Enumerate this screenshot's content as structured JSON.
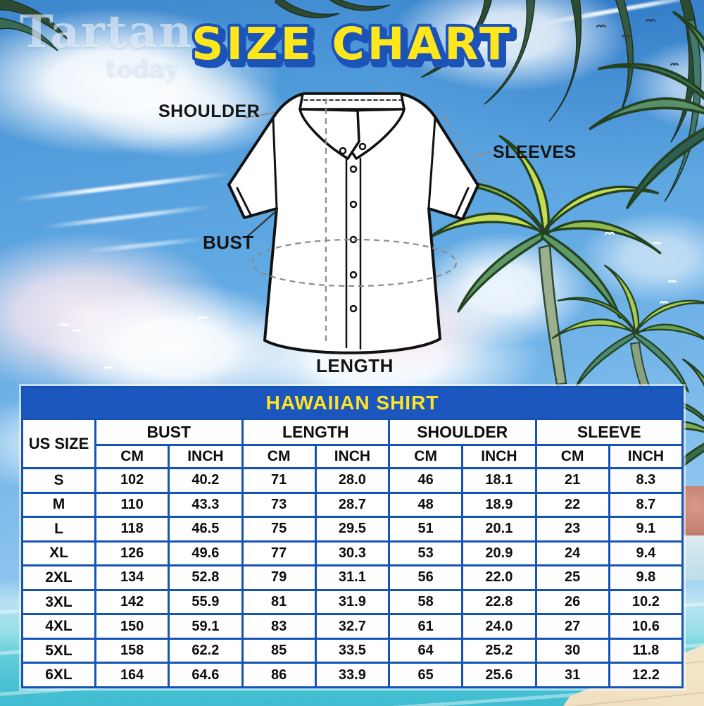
{
  "watermark": {
    "line1": "Tartan",
    "line2": "today"
  },
  "title": "SIZE CHART",
  "diagram": {
    "labels": {
      "shoulder": "SHOULDER",
      "sleeves": "SLEEVES",
      "bust": "BUST",
      "length": "LENGTH"
    }
  },
  "table": {
    "title": "HAWAIIAN SHIRT",
    "size_column_header": "US SIZE",
    "groups": [
      "BUST",
      "LENGTH",
      "SHOULDER",
      "SLEEVE"
    ],
    "unit_headers": [
      "CM",
      "INCH",
      "CM",
      "INCH",
      "CM",
      "INCH",
      "CM",
      "INCH"
    ],
    "rows": [
      {
        "size": "S",
        "values": [
          "102",
          "40.2",
          "71",
          "28.0",
          "46",
          "18.1",
          "21",
          "8.3"
        ]
      },
      {
        "size": "M",
        "values": [
          "110",
          "43.3",
          "73",
          "28.7",
          "48",
          "18.9",
          "22",
          "8.7"
        ]
      },
      {
        "size": "L",
        "values": [
          "118",
          "46.5",
          "75",
          "29.5",
          "51",
          "20.1",
          "23",
          "9.1"
        ]
      },
      {
        "size": "XL",
        "values": [
          "126",
          "49.6",
          "77",
          "30.3",
          "53",
          "20.9",
          "24",
          "9.4"
        ]
      },
      {
        "size": "2XL",
        "values": [
          "134",
          "52.8",
          "79",
          "31.1",
          "56",
          "22.0",
          "25",
          "9.8"
        ]
      },
      {
        "size": "3XL",
        "values": [
          "142",
          "55.9",
          "81",
          "31.9",
          "58",
          "22.8",
          "26",
          "10.2"
        ]
      },
      {
        "size": "4XL",
        "values": [
          "150",
          "59.1",
          "83",
          "32.7",
          "61",
          "24.0",
          "27",
          "10.6"
        ]
      },
      {
        "size": "5XL",
        "values": [
          "158",
          "62.2",
          "85",
          "33.5",
          "64",
          "25.2",
          "30",
          "11.8"
        ]
      },
      {
        "size": "6XL",
        "values": [
          "164",
          "64.6",
          "86",
          "33.9",
          "65",
          "25.6",
          "31",
          "12.2"
        ]
      }
    ]
  },
  "colors": {
    "table_border": "#1553b4",
    "table_header_bg": "#1b57bc",
    "table_header_text": "#ffe326",
    "title_fill": "#ffe71c",
    "title_outline": "#1c53b8"
  }
}
